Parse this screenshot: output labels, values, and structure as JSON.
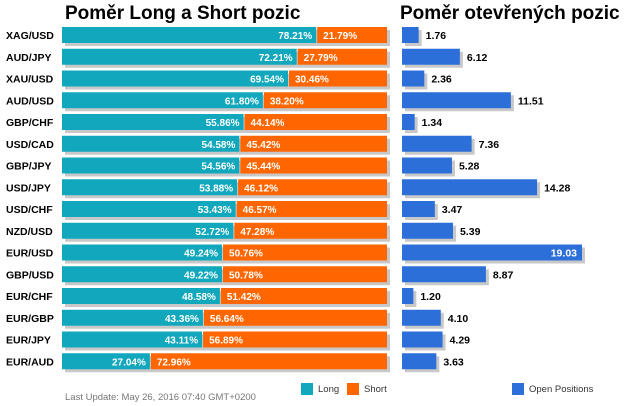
{
  "titles": {
    "left": "Poměr Long a Short pozic",
    "right": "Poměr otevřených pozic"
  },
  "legend": {
    "long": "Long",
    "short": "Short",
    "open": "Open Positions"
  },
  "footer": "Last Update: May 26, 2016 07:40 GMT+0200",
  "colors": {
    "long": "#11a7bd",
    "short": "#ff6600",
    "open": "#2c6fd9",
    "shadow": "#c8c8c8"
  },
  "chart_data": [
    {
      "type": "bar",
      "orientation": "horizontal",
      "stacked": true,
      "title": "Poměr Long a Short pozic",
      "categories": [
        "XAG/USD",
        "AUD/JPY",
        "XAU/USD",
        "AUD/USD",
        "GBP/CHF",
        "USD/CAD",
        "GBP/JPY",
        "USD/JPY",
        "USD/CHF",
        "NZD/USD",
        "EUR/USD",
        "GBP/USD",
        "EUR/CHF",
        "EUR/GBP",
        "EUR/JPY",
        "EUR/AUD"
      ],
      "series": [
        {
          "name": "Long",
          "values": [
            78.21,
            72.21,
            69.54,
            61.8,
            55.86,
            54.58,
            54.56,
            53.88,
            53.43,
            52.72,
            49.24,
            49.22,
            48.58,
            43.36,
            43.11,
            27.04
          ]
        },
        {
          "name": "Short",
          "values": [
            21.79,
            27.79,
            30.46,
            38.2,
            44.14,
            45.42,
            45.44,
            46.12,
            46.57,
            47.28,
            50.76,
            50.78,
            51.42,
            56.64,
            56.89,
            72.96
          ]
        }
      ],
      "value_labels": {
        "long": [
          "78.21%",
          "72.21%",
          "69.54%",
          "61.80%",
          "55.86%",
          "54.58%",
          "54.56%",
          "53.88%",
          "53.43%",
          "52.72%",
          "49.24%",
          "49.22%",
          "48.58%",
          "43.36%",
          "43.11%",
          "27.04%"
        ],
        "short": [
          "21.79%",
          "27.79%",
          "30.46%",
          "38.20%",
          "44.14%",
          "45.42%",
          "45.44%",
          "46.12%",
          "46.57%",
          "47.28%",
          "50.76%",
          "50.78%",
          "51.42%",
          "56.64%",
          "56.89%",
          "72.96%"
        ]
      },
      "xlim": [
        0,
        100
      ],
      "grid": false,
      "legend_position": "bottom"
    },
    {
      "type": "bar",
      "orientation": "horizontal",
      "title": "Poměr otevřených pozic",
      "categories": [
        "XAG/USD",
        "AUD/JPY",
        "XAU/USD",
        "AUD/USD",
        "GBP/CHF",
        "USD/CAD",
        "GBP/JPY",
        "USD/JPY",
        "USD/CHF",
        "NZD/USD",
        "EUR/USD",
        "GBP/USD",
        "EUR/CHF",
        "EUR/GBP",
        "EUR/JPY",
        "EUR/AUD"
      ],
      "series": [
        {
          "name": "Open Positions",
          "values": [
            1.76,
            6.12,
            2.36,
            11.51,
            1.34,
            7.36,
            5.28,
            14.28,
            3.47,
            5.39,
            19.03,
            8.87,
            1.2,
            4.1,
            4.29,
            3.63
          ]
        }
      ],
      "value_labels": [
        "1.76",
        "6.12",
        "2.36",
        "11.51",
        "1.34",
        "7.36",
        "5.28",
        "14.28",
        "3.47",
        "5.39",
        "19.03",
        "8.87",
        "1.20",
        "4.10",
        "4.29",
        "3.63"
      ],
      "xlim": [
        0,
        19.03
      ],
      "grid": false,
      "legend_position": "bottom"
    }
  ]
}
